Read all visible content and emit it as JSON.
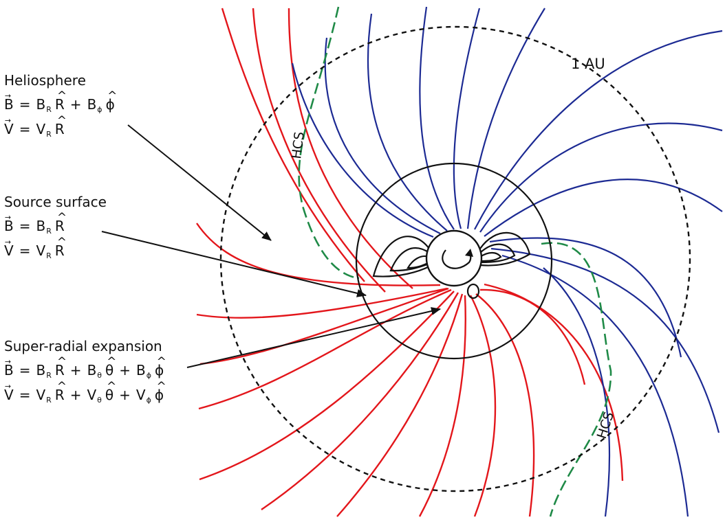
{
  "labels": {
    "au": "1 AU",
    "hcs_upper": "HCS",
    "hcs_lower": "HCS"
  },
  "regions": [
    {
      "id": "heliosphere",
      "heading": "Heliosphere",
      "equations": [
        {
          "lhs": "B",
          "rhs": [
            {
              "c": "B",
              "s": "R",
              "u": "R"
            },
            {
              "c": "B",
              "s": "ϕ",
              "u": "ϕ"
            }
          ]
        },
        {
          "lhs": "V",
          "rhs": [
            {
              "c": "V",
              "s": "R",
              "u": "R"
            }
          ]
        }
      ]
    },
    {
      "id": "source-surface",
      "heading": "Source surface",
      "equations": [
        {
          "lhs": "B",
          "rhs": [
            {
              "c": "B",
              "s": "R",
              "u": "R"
            }
          ]
        },
        {
          "lhs": "V",
          "rhs": [
            {
              "c": "V",
              "s": "R",
              "u": "R"
            }
          ]
        }
      ]
    },
    {
      "id": "super-radial",
      "heading": "Super-radial expansion",
      "equations": [
        {
          "lhs": "B",
          "rhs": [
            {
              "c": "B",
              "s": "R",
              "u": "R"
            },
            {
              "c": "B",
              "s": "θ",
              "u": "θ"
            },
            {
              "c": "B",
              "s": "ϕ",
              "u": "ϕ"
            }
          ]
        },
        {
          "lhs": "V",
          "rhs": [
            {
              "c": "V",
              "s": "R",
              "u": "R"
            },
            {
              "c": "V",
              "s": "θ",
              "u": "θ"
            },
            {
              "c": "V",
              "s": "ϕ",
              "u": "ϕ"
            }
          ]
        }
      ]
    }
  ],
  "colors": {
    "field_red": "#e3161b",
    "field_blue": "#1c2a93",
    "hcs": "#1f8a47",
    "black": "#111111"
  }
}
